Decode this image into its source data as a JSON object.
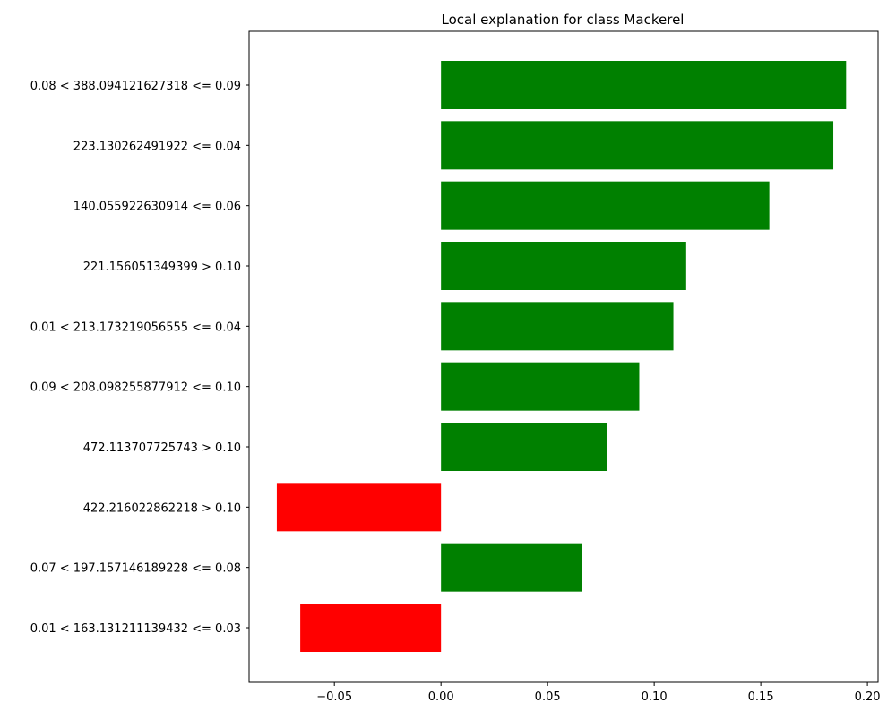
{
  "chart_data": {
    "type": "bar",
    "orientation": "horizontal",
    "title": "Local explanation for class Mackerel",
    "xlabel": "",
    "ylabel": "",
    "xlim": [
      -0.09,
      0.205
    ],
    "xticks": [
      -0.05,
      0.0,
      0.05,
      0.1,
      0.15,
      0.2
    ],
    "xtick_labels": [
      "−0.05",
      "0.00",
      "0.05",
      "0.10",
      "0.15",
      "0.20"
    ],
    "grid": false,
    "categories": [
      "0.08 < 388.094121627318 <= 0.09",
      "223.130262491922 <= 0.04",
      "140.055922630914 <= 0.06",
      "221.156051349399 > 0.10",
      "0.01 < 213.173219056555 <= 0.04",
      "0.09 < 208.098255877912 <= 0.10",
      "472.113707725743 > 0.10",
      "422.216022862218 > 0.10",
      "0.07 < 197.157146189228 <= 0.08",
      "0.01 < 163.131211139432 <= 0.03"
    ],
    "values": [
      0.19,
      0.184,
      0.154,
      0.115,
      0.109,
      0.093,
      0.078,
      -0.077,
      0.066,
      -0.066
    ],
    "colors": {
      "positive": "#008000",
      "negative": "#ff0000"
    }
  }
}
